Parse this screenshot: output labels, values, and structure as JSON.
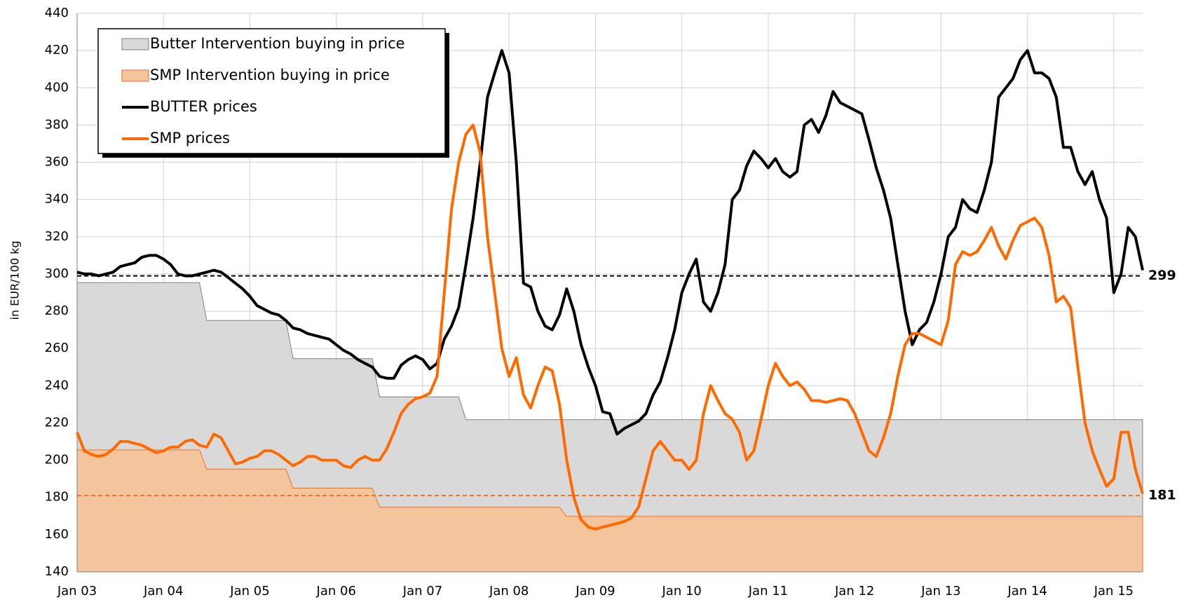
{
  "chart_data": {
    "type": "line",
    "y_label": "in EUR/100 kg",
    "x": [
      "Jan 03",
      "Feb 03",
      "Mar 03",
      "Apr 03",
      "May 03",
      "Jun 03",
      "Jul 03",
      "Aug 03",
      "Sep 03",
      "Oct 03",
      "Nov 03",
      "Dec 03",
      "Jan 04",
      "Feb 04",
      "Mar 04",
      "Apr 04",
      "May 04",
      "Jun 04",
      "Jul 04",
      "Aug 04",
      "Sep 04",
      "Oct 04",
      "Nov 04",
      "Dec 04",
      "Jan 05",
      "Feb 05",
      "Mar 05",
      "Apr 05",
      "May 05",
      "Jun 05",
      "Jul 05",
      "Aug 05",
      "Sep 05",
      "Oct 05",
      "Nov 05",
      "Dec 05",
      "Jan 06",
      "Feb 06",
      "Mar 06",
      "Apr 06",
      "May 06",
      "Jun 06",
      "Jul 06",
      "Aug 06",
      "Sep 06",
      "Oct 06",
      "Nov 06",
      "Dec 06",
      "Jan 07",
      "Feb 07",
      "Mar 07",
      "Apr 07",
      "May 07",
      "Jun 07",
      "Jul 07",
      "Aug 07",
      "Sep 07",
      "Oct 07",
      "Nov 07",
      "Dec 07",
      "Jan 08",
      "Feb 08",
      "Mar 08",
      "Apr 08",
      "May 08",
      "Jun 08",
      "Jul 08",
      "Aug 08",
      "Sep 08",
      "Oct 08",
      "Nov 08",
      "Dec 08",
      "Jan 09",
      "Feb 09",
      "Mar 09",
      "Apr 09",
      "May 09",
      "Jun 09",
      "Jul 09",
      "Aug 09",
      "Sep 09",
      "Oct 09",
      "Nov 09",
      "Dec 09",
      "Jan 10",
      "Feb 10",
      "Mar 10",
      "Apr 10",
      "May 10",
      "Jun 10",
      "Jul 10",
      "Aug 10",
      "Sep 10",
      "Oct 10",
      "Nov 10",
      "Dec 10",
      "Jan 11",
      "Feb 11",
      "Mar 11",
      "Apr 11",
      "May 11",
      "Jun 11",
      "Jul 11",
      "Aug 11",
      "Sep 11",
      "Oct 11",
      "Nov 11",
      "Dec 11",
      "Jan 12",
      "Feb 12",
      "Mar 12",
      "Apr 12",
      "May 12",
      "Jun 12",
      "Jul 12",
      "Aug 12",
      "Sep 12",
      "Oct 12",
      "Nov 12",
      "Dec 12",
      "Jan 13",
      "Feb 13",
      "Mar 13",
      "Apr 13",
      "May 13",
      "Jun 13",
      "Jul 13",
      "Aug 13",
      "Sep 13",
      "Oct 13",
      "Nov 13",
      "Dec 13",
      "Jan 14",
      "Feb 14",
      "Mar 14",
      "Apr 14",
      "May 14",
      "Jun 14",
      "Jul 14",
      "Aug 14",
      "Sep 14",
      "Oct 14",
      "Nov 14",
      "Dec 14",
      "Jan 15",
      "Feb 15",
      "Mar 15",
      "Apr 15",
      "May 15"
    ],
    "series": [
      {
        "name": "Butter Intervention buying in price",
        "kind": "area",
        "color": "#d9d9d9",
        "stroke": "#808080",
        "values": [
          295.4,
          295.4,
          295.4,
          295.4,
          295.4,
          295.4,
          295.4,
          295.4,
          295.4,
          295.4,
          295.4,
          295.4,
          295.4,
          295.4,
          295.4,
          295.4,
          295.4,
          295.4,
          275,
          275,
          275,
          275,
          275,
          275,
          275,
          275,
          275,
          275,
          275,
          275,
          254.5,
          254.5,
          254.5,
          254.5,
          254.5,
          254.5,
          254.5,
          254.5,
          254.5,
          254.5,
          254.5,
          254.5,
          234,
          234,
          234,
          234,
          234,
          234,
          234,
          234,
          234,
          234,
          234,
          234,
          221.8,
          221.8,
          221.8,
          221.8,
          221.8,
          221.8,
          221.8,
          221.8,
          221.8,
          221.8,
          221.8,
          221.8,
          221.8,
          221.8,
          221.8,
          221.8,
          221.8,
          221.8,
          221.8,
          221.8,
          221.8,
          221.8,
          221.8,
          221.8,
          221.8,
          221.8,
          221.8,
          221.8,
          221.8,
          221.8,
          221.8,
          221.8,
          221.8,
          221.8,
          221.8,
          221.8,
          221.8,
          221.8,
          221.8,
          221.8,
          221.8,
          221.8,
          221.8,
          221.8,
          221.8,
          221.8,
          221.8,
          221.8,
          221.8,
          221.8,
          221.8,
          221.8,
          221.8,
          221.8,
          221.8,
          221.8,
          221.8,
          221.8,
          221.8,
          221.8,
          221.8,
          221.8,
          221.8,
          221.8,
          221.8,
          221.8,
          221.8,
          221.8,
          221.8,
          221.8,
          221.8,
          221.8,
          221.8,
          221.8,
          221.8,
          221.8,
          221.8,
          221.8,
          221.8,
          221.8,
          221.8,
          221.8,
          221.8,
          221.8,
          221.8,
          221.8,
          221.8,
          221.8,
          221.8,
          221.8,
          221.8,
          221.8,
          221.8,
          221.8,
          221.8
        ]
      },
      {
        "name": "SMP Intervention buying in price",
        "kind": "area",
        "color": "#f4c49c",
        "stroke": "#f07020",
        "values": [
          205.5,
          205.5,
          205.5,
          205.5,
          205.5,
          205.5,
          205.5,
          205.5,
          205.5,
          205.5,
          205.5,
          205.5,
          205.5,
          205.5,
          205.5,
          205.5,
          205.5,
          205.5,
          195.2,
          195.2,
          195.2,
          195.2,
          195.2,
          195.2,
          195.2,
          195.2,
          195.2,
          195.2,
          195.2,
          195.2,
          185,
          185,
          185,
          185,
          185,
          185,
          185,
          185,
          185,
          185,
          185,
          185,
          174.7,
          174.7,
          174.7,
          174.7,
          174.7,
          174.7,
          174.7,
          174.7,
          174.7,
          174.7,
          174.7,
          174.7,
          174.7,
          174.7,
          174.7,
          174.7,
          174.7,
          174.7,
          174.7,
          174.7,
          174.7,
          174.7,
          174.7,
          174.7,
          174.7,
          174.7,
          169.8,
          169.8,
          169.8,
          169.8,
          169.8,
          169.8,
          169.8,
          169.8,
          169.8,
          169.8,
          169.8,
          169.8,
          169.8,
          169.8,
          169.8,
          169.8,
          169.8,
          169.8,
          169.8,
          169.8,
          169.8,
          169.8,
          169.8,
          169.8,
          169.8,
          169.8,
          169.8,
          169.8,
          169.8,
          169.8,
          169.8,
          169.8,
          169.8,
          169.8,
          169.8,
          169.8,
          169.8,
          169.8,
          169.8,
          169.8,
          169.8,
          169.8,
          169.8,
          169.8,
          169.8,
          169.8,
          169.8,
          169.8,
          169.8,
          169.8,
          169.8,
          169.8,
          169.8,
          169.8,
          169.8,
          169.8,
          169.8,
          169.8,
          169.8,
          169.8,
          169.8,
          169.8,
          169.8,
          169.8,
          169.8,
          169.8,
          169.8,
          169.8,
          169.8,
          169.8,
          169.8,
          169.8,
          169.8,
          169.8,
          169.8,
          169.8,
          169.8,
          169.8,
          169.8,
          169.8,
          169.8
        ]
      },
      {
        "name": "BUTTER prices",
        "kind": "line",
        "color": "#000000",
        "values": [
          301,
          300,
          300,
          299,
          300,
          301,
          304,
          305,
          306,
          309,
          310,
          310,
          308,
          305,
          300,
          299,
          299,
          300,
          301,
          302,
          301,
          298,
          295,
          292,
          288,
          283,
          281,
          279,
          278,
          275,
          271,
          270,
          268,
          267,
          266,
          265,
          262,
          259,
          257,
          254,
          252,
          250,
          245,
          244,
          244,
          251,
          254,
          256,
          254,
          249,
          252,
          265,
          272,
          282,
          305,
          330,
          360,
          395,
          408,
          420,
          408,
          360,
          295,
          293,
          280,
          272,
          270,
          278,
          292,
          280,
          262,
          250,
          240,
          226,
          225,
          214,
          217,
          219,
          221,
          225,
          235,
          242,
          255,
          270,
          290,
          300,
          308,
          285,
          280,
          290,
          305,
          340,
          345,
          358,
          366,
          362,
          357,
          362,
          355,
          352,
          355,
          380,
          383,
          376,
          385,
          398,
          392,
          390,
          388,
          386,
          372,
          357,
          345,
          330,
          305,
          280,
          262,
          270,
          274,
          285,
          300,
          320,
          325,
          340,
          335,
          333,
          345,
          360,
          395,
          400,
          405,
          415,
          420,
          408,
          408,
          405,
          395,
          368,
          368,
          355,
          348,
          355,
          340,
          330,
          290,
          300,
          325,
          320,
          302
        ]
      },
      {
        "name": "SMP prices",
        "kind": "line",
        "color": "#ff6a00",
        "values": [
          215,
          205,
          203,
          202,
          203,
          206,
          210,
          210,
          209,
          208,
          206,
          204,
          205,
          207,
          207,
          210,
          211,
          208,
          207,
          214,
          212,
          205,
          198,
          199,
          201,
          202,
          205,
          205,
          203,
          200,
          197,
          199,
          202,
          202,
          200,
          200,
          200,
          197,
          196,
          200,
          202,
          200,
          200,
          206,
          215,
          225,
          230,
          233,
          234,
          236,
          245,
          290,
          335,
          360,
          375,
          380,
          365,
          320,
          290,
          260,
          245,
          255,
          235,
          228,
          240,
          250,
          248,
          230,
          200,
          180,
          168,
          164,
          163,
          164,
          165,
          166,
          167,
          169,
          175,
          190,
          205,
          210,
          205,
          200,
          200,
          195,
          200,
          225,
          240,
          232,
          225,
          222,
          215,
          200,
          205,
          222,
          240,
          252,
          245,
          240,
          242,
          238,
          232,
          232,
          231,
          232,
          233,
          232,
          225,
          215,
          205,
          202,
          212,
          225,
          245,
          262,
          268,
          268,
          266,
          264,
          262,
          275,
          305,
          312,
          310,
          312,
          318,
          325,
          315,
          308,
          318,
          326,
          328,
          330,
          325,
          310,
          285,
          288,
          282,
          250,
          220,
          205,
          195,
          186,
          190,
          215,
          215,
          195,
          182
        ]
      }
    ],
    "reference_lines": [
      {
        "value": 299,
        "color": "#000000"
      },
      {
        "value": 181,
        "color": "#f07020"
      }
    ],
    "ylim": [
      140,
      440
    ],
    "yticks": [
      140,
      160,
      180,
      200,
      220,
      240,
      260,
      280,
      300,
      320,
      340,
      360,
      380,
      400,
      420,
      440
    ],
    "grid": true
  }
}
